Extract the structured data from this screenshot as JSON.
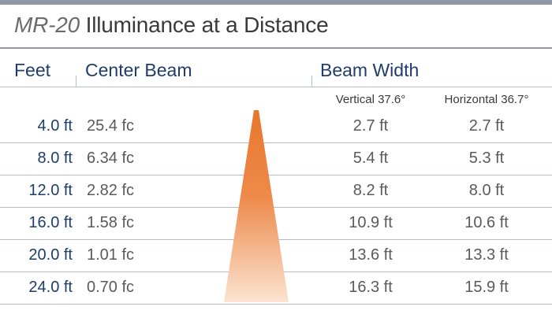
{
  "title": {
    "model": "MR-20",
    "text": "Illuminance at a Distance"
  },
  "headers": {
    "feet": "Feet",
    "center_beam": "Center Beam",
    "beam_width": "Beam Width"
  },
  "subheaders": {
    "vertical": "Vertical 37.6°",
    "horizontal": "Horizontal 36.7°"
  },
  "rows": [
    {
      "feet": "4.0 ft",
      "center": "25.4 fc",
      "vertical": "2.7 ft",
      "horizontal": "2.7 ft"
    },
    {
      "feet": "8.0 ft",
      "center": "6.34 fc",
      "vertical": "5.4 ft",
      "horizontal": "5.3 ft"
    },
    {
      "feet": "12.0 ft",
      "center": "2.82 fc",
      "vertical": "8.2 ft",
      "horizontal": "8.0 ft"
    },
    {
      "feet": "16.0 ft",
      "center": "1.58 fc",
      "vertical": "10.9 ft",
      "horizontal": "10.6 ft"
    },
    {
      "feet": "20.0 ft",
      "center": "1.01 fc",
      "vertical": "13.6 ft",
      "horizontal": "13.3 ft"
    },
    {
      "feet": "24.0 ft",
      "center": "0.70 fc",
      "vertical": "16.3 ft",
      "horizontal": "15.9 ft"
    }
  ],
  "colors": {
    "accent_blue": "#1f3d6b",
    "rule_gray": "#8f9aa6",
    "beam_top": "#e8772e",
    "beam_bottom": "#fbe3d2"
  }
}
